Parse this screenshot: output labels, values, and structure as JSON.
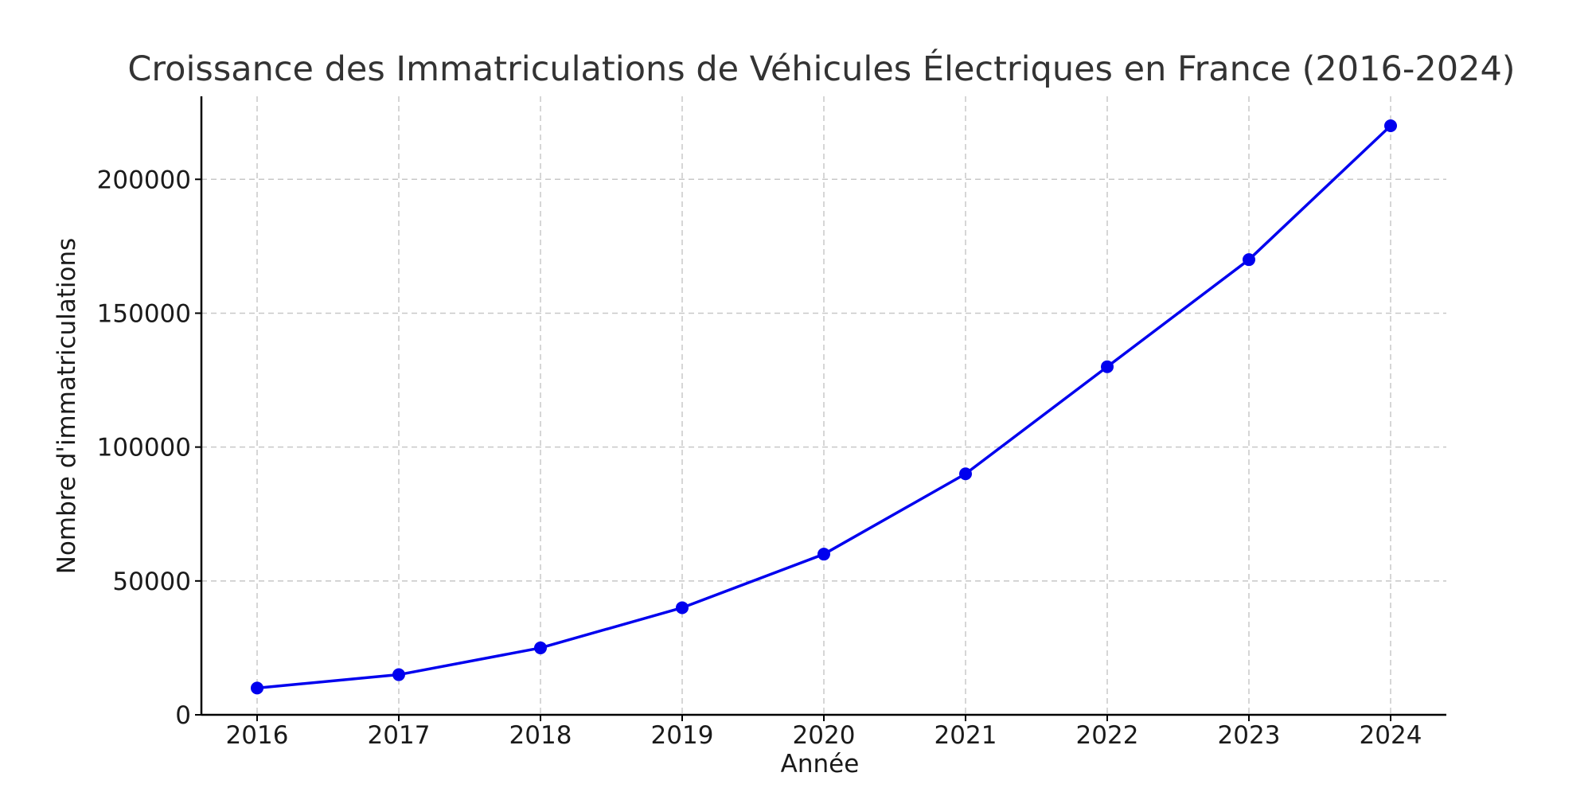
{
  "chart_data": {
    "type": "line",
    "title": "Croissance des Immatriculations de Véhicules Électriques en France (2016-2024)",
    "xlabel": "Année",
    "ylabel": "Nombre d'immatriculations",
    "x": [
      "2016",
      "2017",
      "2018",
      "2019",
      "2020",
      "2021",
      "2022",
      "2023",
      "2024"
    ],
    "series": [
      {
        "values": [
          10000,
          15000,
          25000,
          40000,
          60000,
          90000,
          130000,
          170000,
          220000
        ]
      }
    ],
    "y_ticks": [
      "0",
      "50000",
      "100000",
      "150000",
      "200000"
    ],
    "ylim": [
      0,
      231000
    ],
    "grid": true,
    "line_color": "#0000ee",
    "marker": "circle"
  }
}
